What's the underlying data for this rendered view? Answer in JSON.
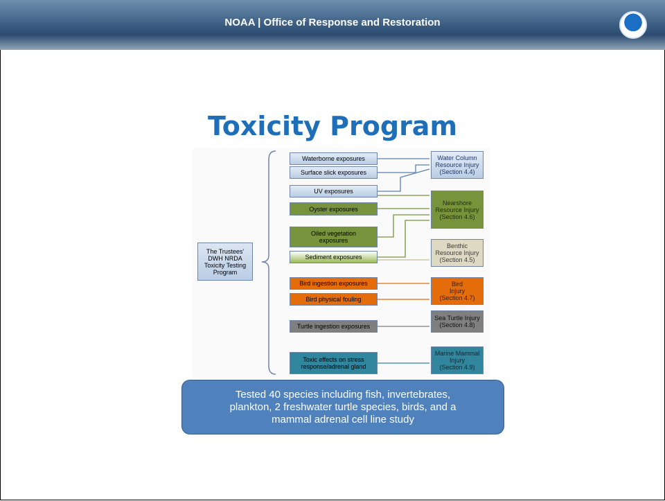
{
  "header": {
    "title": "NOAA | Office of Response and Restoration"
  },
  "title": "Toxicity Program",
  "diagram": {
    "root": {
      "lines": [
        "The Trustees'",
        "DWH NRDA",
        "Toxicity Testing",
        "Program"
      ]
    },
    "exposures": [
      {
        "lines": [
          "Waterborne exposures"
        ]
      },
      {
        "lines": [
          "Surface slick exposures"
        ]
      },
      {
        "lines": [
          "UV exposures"
        ]
      },
      {
        "lines": [
          "Oyster exposures"
        ]
      },
      {
        "lines": [
          "Oiled vegetation",
          "exposures"
        ]
      },
      {
        "lines": [
          "Sediment exposures"
        ]
      },
      {
        "lines": [
          "Bird ingestion exposures"
        ]
      },
      {
        "lines": [
          "Bird physical fouling"
        ]
      },
      {
        "lines": [
          "Turtle ingestion exposures"
        ]
      },
      {
        "lines": [
          "Toxic effects on stress",
          "response/adrenal gland"
        ]
      }
    ],
    "injuries": [
      {
        "lines": [
          "Water Column",
          "Resource Injury",
          "(Section 4.4)"
        ]
      },
      {
        "lines": [
          "Nearshore",
          "Resource Injury",
          "(Section 4.6)"
        ]
      },
      {
        "lines": [
          "Benthic",
          "Resource Injury",
          "(Section 4.5)"
        ]
      },
      {
        "lines": [
          "Bird",
          "Injury",
          "(Section 4.7)"
        ]
      },
      {
        "lines": [
          "Sea Turtle Injury",
          "(Section 4.8)"
        ]
      },
      {
        "lines": [
          "Marine Mammal",
          "Injury",
          "(Section 4.9)"
        ]
      }
    ]
  },
  "callout": {
    "lines": [
      "Tested 40 species including fish, invertebrates,",
      "plankton, 2 freshwater turtle species, birds, and a",
      "mammal adrenal cell line study"
    ]
  }
}
